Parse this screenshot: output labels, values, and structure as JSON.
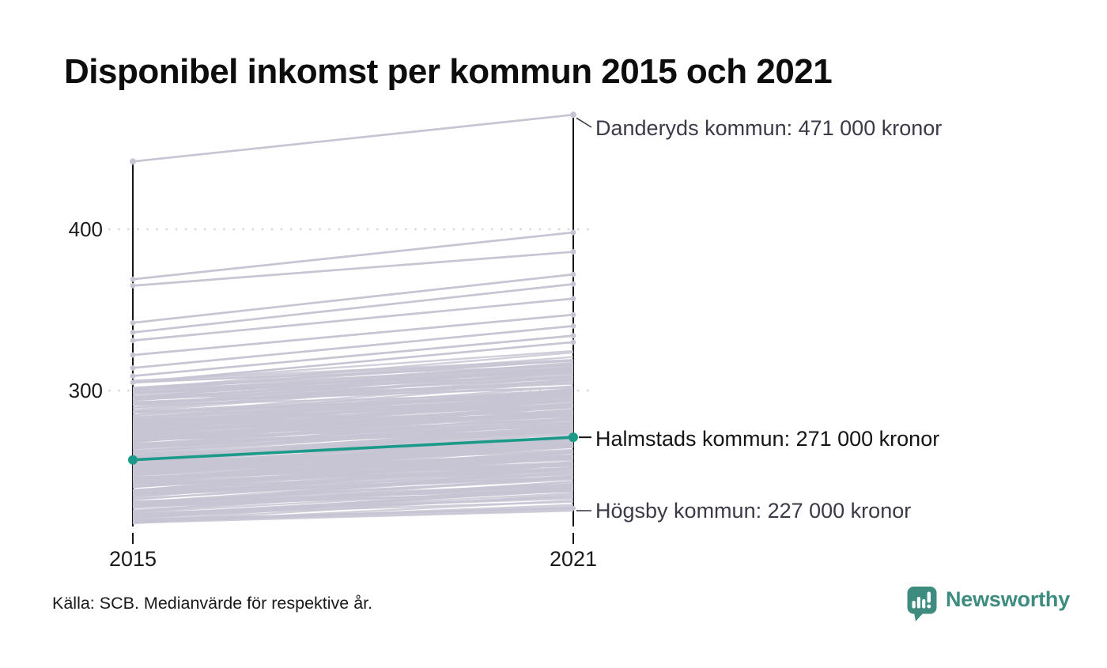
{
  "title": "Disponibel inkomst per kommun 2015 och 2021",
  "footer": {
    "source": "Källa: SCB. Medianvärde för respektive år."
  },
  "logo": {
    "text": "Newsworthy",
    "color": "#3d8c7f",
    "icon": "newsworthy-speech-bubble-bar-chart-icon"
  },
  "colors": {
    "highlight": "#1b9a8a",
    "background_line": "#c7c5d3",
    "axis": "#141414",
    "grid": "#d8d8d8",
    "annotation": "#3a3a48",
    "title": "#0d0d0d"
  },
  "chart_data": {
    "type": "line",
    "subtype": "slope-chart",
    "x": [
      "2015",
      "2021"
    ],
    "xlabel": "",
    "ylabel": "",
    "unit": "thousands of kronor (tusen kronor)",
    "yticks": [
      300,
      400
    ],
    "ytick_labels": [
      "300",
      "400"
    ],
    "ylim": [
      210,
      485
    ],
    "grid": "dotted horizontal at yticks",
    "legend": "none",
    "values_note": "2021 values are labeled on the chart; 2015 values are estimated from line positions",
    "series": [
      {
        "name": "Danderyds kommun",
        "values": [
          442,
          471
        ],
        "label": "Danderyds kommun: 471 000 kronor",
        "color": "#c7c5d3",
        "highlighted": false
      },
      {
        "name": "Halmstads kommun",
        "values": [
          257,
          271
        ],
        "label": "Halmstads kommun: 271 000 kronor",
        "color": "#1b9a8a",
        "highlighted": true
      },
      {
        "name": "Högsby kommun",
        "values": [
          220,
          227
        ],
        "label": "Högsby kommun: 227 000 kronor",
        "color": "#c7c5d3",
        "highlighted": false
      }
    ],
    "background_lines": {
      "description": "unlabeled gray slope lines, one per Swedish municipality",
      "color": "#c7c5d3",
      "feature_lines": [
        [
          369,
          398
        ],
        [
          365,
          386
        ],
        [
          342,
          372
        ],
        [
          336,
          366
        ],
        [
          331,
          357
        ],
        [
          322,
          347
        ],
        [
          314,
          340
        ],
        [
          309,
          334
        ],
        [
          305,
          330
        ]
      ],
      "mass": {
        "count": 258,
        "value_2015_range": [
          217,
          307
        ],
        "mean_2015": 261,
        "delta_range": [
          7,
          24
        ],
        "seed": 11
      }
    }
  }
}
